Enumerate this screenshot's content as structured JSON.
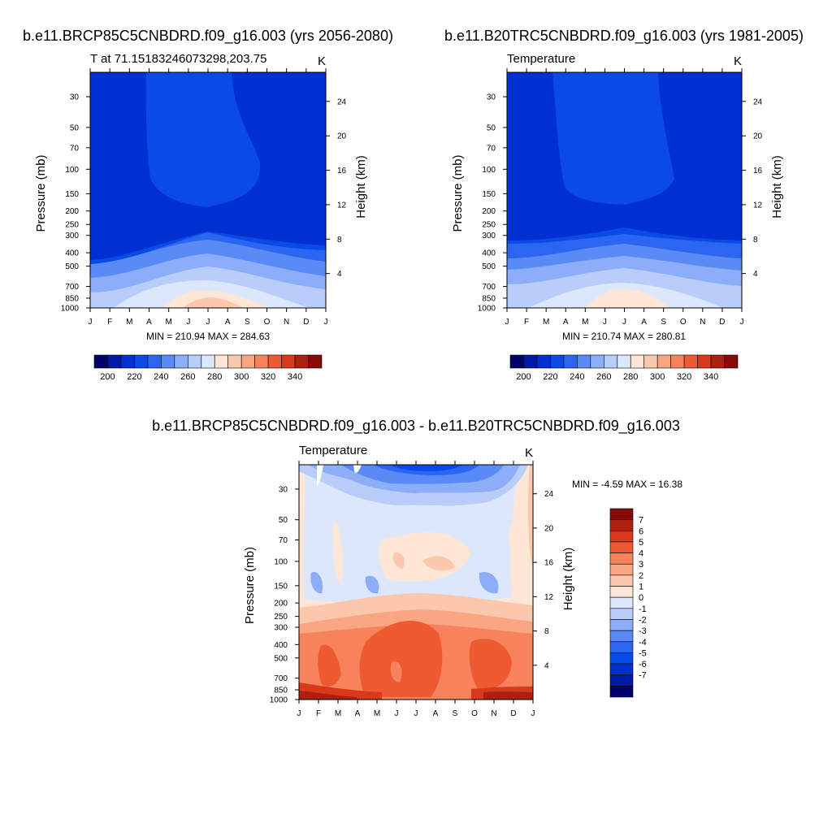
{
  "colors": {
    "abs_palette": [
      "#00006b",
      "#001aa5",
      "#0030cf",
      "#0a4be6",
      "#2a66f0",
      "#5a8af5",
      "#8cadf7",
      "#b8cdf9",
      "#dce7fb",
      "#fde6d6",
      "#fcc8ad",
      "#fba683",
      "#f7835d",
      "#ee5a32",
      "#d8391a",
      "#ae2110",
      "#860a06"
    ],
    "diff_palette": [
      "#00006b",
      "#001aa5",
      "#0030cf",
      "#0a4be6",
      "#2a66f0",
      "#5a8af5",
      "#8cadf7",
      "#b8cdf9",
      "#dce7fb",
      "#fde6d6",
      "#fcc8ad",
      "#fba683",
      "#f7835d",
      "#ee5a32",
      "#d8391a",
      "#ae2110",
      "#860a06"
    ]
  },
  "panels": [
    {
      "id": "future",
      "header": "b.e11.BRCP85C5CNBDRD.f09_g16.003 (yrs 2056-2080)",
      "left_title": "T at 71.15183246073298,203.75",
      "right_title": "K",
      "stats": "MIN = 210.94 MAX = 284.63"
    },
    {
      "id": "historical",
      "header": "b.e11.B20TRC5CNBDRD.f09_g16.003 (yrs 1981-2005)",
      "left_title": "Temperature",
      "right_title": "K",
      "stats": "MIN = 210.74 MAX = 280.81"
    },
    {
      "id": "difference",
      "header": "b.e11.BRCP85C5CNBDRD.f09_g16.003 - b.e11.B20TRC5CNBDRD.f09_g16.003",
      "left_title": "Temperature",
      "right_title": "K",
      "stats": "MIN =  -4.59 MAX =  16.38"
    }
  ],
  "chart_data": [
    {
      "type": "heatmap",
      "panel": "future",
      "title": "T at 71.15183246073298,203.75",
      "units": "K",
      "xlabel": "",
      "ylabel": "Pressure (mb)",
      "ylabel_right": "Height (km)",
      "x_ticks": [
        "J",
        "F",
        "M",
        "A",
        "M",
        "J",
        "J",
        "A",
        "S",
        "O",
        "N",
        "D",
        "J"
      ],
      "y_ticks": [
        "30",
        "50",
        "70",
        "100",
        "150",
        "200",
        "250",
        "300",
        "400",
        "500",
        "700",
        "850",
        "1000"
      ],
      "y_ticks_right": [
        "24",
        "20",
        "16",
        "12",
        "8",
        "4"
      ],
      "y_scale": "log-pressure",
      "ylim": [
        1000,
        20
      ],
      "min": 210.94,
      "max": 284.63,
      "colorbar_ticks": [
        "200",
        "220",
        "240",
        "260",
        "280",
        "300",
        "320",
        "340"
      ],
      "colorbar_levels": [
        195,
        200,
        205,
        210,
        215,
        220,
        225,
        230,
        235,
        240,
        245,
        250,
        255,
        260,
        265,
        270,
        275,
        280
      ],
      "legend_position": "bottom"
    },
    {
      "type": "heatmap",
      "panel": "historical",
      "title": "Temperature",
      "units": "K",
      "xlabel": "",
      "ylabel": "Pressure (mb)",
      "ylabel_right": "Height (km)",
      "x_ticks": [
        "J",
        "F",
        "M",
        "A",
        "M",
        "J",
        "J",
        "A",
        "S",
        "O",
        "N",
        "D",
        "J"
      ],
      "y_ticks": [
        "30",
        "50",
        "70",
        "100",
        "150",
        "200",
        "250",
        "300",
        "400",
        "500",
        "700",
        "850",
        "1000"
      ],
      "y_ticks_right": [
        "24",
        "20",
        "16",
        "12",
        "8",
        "4"
      ],
      "y_scale": "log-pressure",
      "ylim": [
        1000,
        20
      ],
      "min": 210.74,
      "max": 280.81,
      "colorbar_ticks": [
        "200",
        "220",
        "240",
        "260",
        "280",
        "300",
        "320",
        "340"
      ],
      "colorbar_levels": [
        195,
        200,
        205,
        210,
        215,
        220,
        225,
        230,
        235,
        240,
        245,
        250,
        255,
        260,
        265,
        270,
        275,
        280
      ],
      "legend_position": "bottom"
    },
    {
      "type": "heatmap",
      "panel": "difference",
      "title": "Temperature",
      "units": "K",
      "xlabel": "",
      "ylabel": "Pressure (mb)",
      "ylabel_right": "Height (km)",
      "x_ticks": [
        "J",
        "F",
        "M",
        "A",
        "M",
        "J",
        "J",
        "A",
        "S",
        "O",
        "N",
        "D",
        "J"
      ],
      "y_ticks": [
        "30",
        "50",
        "70",
        "100",
        "150",
        "200",
        "250",
        "300",
        "400",
        "500",
        "700",
        "850",
        "1000"
      ],
      "y_ticks_right": [
        "24",
        "20",
        "16",
        "12",
        "8",
        "4"
      ],
      "y_scale": "log-pressure",
      "ylim": [
        1000,
        20
      ],
      "min": -4.59,
      "max": 16.38,
      "colorbar_ticks": [
        "7",
        "6",
        "5",
        "4",
        "3",
        "2",
        "1",
        "0",
        "-1",
        "-2",
        "-3",
        "-4",
        "-5",
        "-6",
        "-7"
      ],
      "legend_position": "right"
    }
  ]
}
